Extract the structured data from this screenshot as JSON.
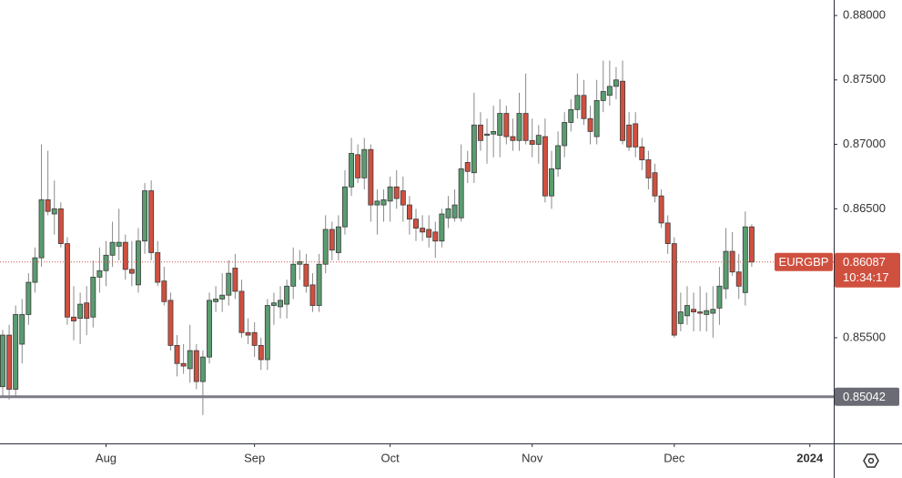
{
  "chart_data": {
    "type": "candlestick",
    "symbol": "EURGBP",
    "last_price": {
      "value": 0.86087,
      "label": "0.86087"
    },
    "countdown": "10:34:17",
    "level": {
      "value": 0.85042,
      "label": "0.85042"
    },
    "up_color": "#5a9c70",
    "down_color": "#d0503f",
    "xlim": [
      -0.42,
      128.7
    ],
    "xticks": [
      {
        "value": 16,
        "label": "Aug"
      },
      {
        "value": 39,
        "label": "Sep"
      },
      {
        "value": 60,
        "label": "Oct"
      },
      {
        "value": 82,
        "label": "Nov"
      },
      {
        "value": 104,
        "label": "Dec"
      },
      {
        "value": 125,
        "label": "2024"
      }
    ],
    "ylim": [
      0.8468,
      0.8812
    ],
    "yticks": [
      {
        "value": 0.855,
        "label": "0.85500"
      },
      {
        "value": 0.86,
        "label": "0.86000"
      },
      {
        "value": 0.865,
        "label": "0.86500"
      },
      {
        "value": 0.87,
        "label": "0.87000"
      },
      {
        "value": 0.875,
        "label": "0.87500"
      },
      {
        "value": 0.88,
        "label": "0.88000"
      }
    ],
    "open": [
      0.8512,
      0.8552,
      0.851,
      0.8545,
      0.8568,
      0.8593,
      0.8612,
      0.8657,
      0.8646,
      0.865,
      0.8623,
      0.8566,
      0.8565,
      0.8577,
      0.8566,
      0.8597,
      0.8602,
      0.8614,
      0.8621,
      0.8624,
      0.8603,
      0.8591,
      0.8625,
      0.8664,
      0.8616,
      0.8594,
      0.8579,
      0.8544,
      0.853,
      0.8526,
      0.854,
      0.8516,
      0.8535,
      0.8578,
      0.858,
      0.8583,
      0.8604,
      0.8586,
      0.8554,
      0.8554,
      0.8544,
      0.8533,
      0.8575,
      0.8574,
      0.8576,
      0.859,
      0.8607,
      0.8607,
      0.8591,
      0.8575,
      0.8607,
      0.8634,
      0.8616,
      0.8636,
      0.8667,
      0.8692,
      0.8674,
      0.8696,
      0.8653,
      0.8653,
      0.8656,
      0.8667,
      0.8664,
      0.8653,
      0.8642,
      0.8635,
      0.8634,
      0.8632,
      0.8625,
      0.8643,
      0.8643,
      0.8643,
      0.8686,
      0.8678,
      0.8715,
      0.8707,
      0.8708,
      0.8707,
      0.8724,
      0.8706,
      0.8703,
      0.8724,
      0.8703,
      0.87,
      0.8706,
      0.866,
      0.8681,
      0.8699,
      0.8717,
      0.8727,
      0.8738,
      0.872,
      0.8706,
      0.8734,
      0.8738,
      0.8745,
      0.8749,
      0.8715,
      0.8716,
      0.8698,
      0.8688,
      0.8678,
      0.866,
      0.8639,
      0.8623,
      0.8561,
      0.8567,
      0.8572,
      0.857,
      0.8568,
      0.8569,
      0.8573,
      0.8588,
      0.8617,
      0.8601,
      0.8585,
      0.8636
    ],
    "high": [
      0.8556,
      0.856,
      0.8575,
      0.858,
      0.86,
      0.862,
      0.87,
      0.8695,
      0.8672,
      0.8655,
      0.8628,
      0.859,
      0.8585,
      0.859,
      0.861,
      0.862,
      0.8625,
      0.864,
      0.865,
      0.863,
      0.8625,
      0.8635,
      0.867,
      0.8672,
      0.8625,
      0.8605,
      0.8585,
      0.8552,
      0.8545,
      0.856,
      0.8545,
      0.854,
      0.8585,
      0.859,
      0.86,
      0.861,
      0.8615,
      0.8595,
      0.8565,
      0.8562,
      0.855,
      0.858,
      0.8585,
      0.859,
      0.8595,
      0.862,
      0.8618,
      0.8615,
      0.86,
      0.8615,
      0.8645,
      0.864,
      0.8645,
      0.868,
      0.8705,
      0.87,
      0.8705,
      0.87,
      0.8665,
      0.8665,
      0.8675,
      0.868,
      0.8675,
      0.866,
      0.865,
      0.8645,
      0.8645,
      0.864,
      0.865,
      0.866,
      0.8665,
      0.87,
      0.8695,
      0.874,
      0.8725,
      0.872,
      0.873,
      0.8735,
      0.873,
      0.872,
      0.874,
      0.8755,
      0.872,
      0.8715,
      0.872,
      0.8695,
      0.871,
      0.8725,
      0.8735,
      0.8755,
      0.875,
      0.873,
      0.875,
      0.8765,
      0.8765,
      0.876,
      0.8765,
      0.8725,
      0.8725,
      0.8705,
      0.8695,
      0.8685,
      0.8665,
      0.8645,
      0.8628,
      0.8585,
      0.859,
      0.8585,
      0.859,
      0.8585,
      0.859,
      0.8605,
      0.8635,
      0.8632,
      0.8615,
      0.8648,
      0.8638
    ],
    "low": [
      0.8505,
      0.8502,
      0.8505,
      0.853,
      0.856,
      0.8585,
      0.8605,
      0.8645,
      0.863,
      0.862,
      0.856,
      0.8548,
      0.8545,
      0.8552,
      0.8558,
      0.8585,
      0.859,
      0.8605,
      0.861,
      0.8595,
      0.859,
      0.8585,
      0.8615,
      0.861,
      0.859,
      0.8575,
      0.854,
      0.852,
      0.8522,
      0.8515,
      0.851,
      0.849,
      0.853,
      0.857,
      0.857,
      0.8575,
      0.858,
      0.855,
      0.8545,
      0.8535,
      0.8525,
      0.8525,
      0.856,
      0.8565,
      0.8565,
      0.858,
      0.8595,
      0.8585,
      0.857,
      0.857,
      0.86,
      0.861,
      0.861,
      0.863,
      0.866,
      0.867,
      0.8665,
      0.864,
      0.863,
      0.864,
      0.864,
      0.865,
      0.864,
      0.863,
      0.8625,
      0.8625,
      0.862,
      0.8612,
      0.862,
      0.8635,
      0.864,
      0.864,
      0.867,
      0.867,
      0.8695,
      0.8685,
      0.869,
      0.869,
      0.87,
      0.8695,
      0.8695,
      0.87,
      0.869,
      0.8685,
      0.8655,
      0.865,
      0.8675,
      0.869,
      0.871,
      0.872,
      0.8715,
      0.87,
      0.87,
      0.8725,
      0.873,
      0.8735,
      0.87,
      0.8695,
      0.869,
      0.868,
      0.8665,
      0.8655,
      0.8635,
      0.8615,
      0.855,
      0.8555,
      0.856,
      0.8555,
      0.8555,
      0.8555,
      0.855,
      0.856,
      0.858,
      0.8598,
      0.858,
      0.8575,
      0.8605
    ],
    "close": [
      0.8552,
      0.851,
      0.8568,
      0.8568,
      0.8593,
      0.8612,
      0.8657,
      0.8648,
      0.865,
      0.8623,
      0.8566,
      0.8563,
      0.8576,
      0.8565,
      0.8597,
      0.8602,
      0.8614,
      0.8624,
      0.8624,
      0.8603,
      0.86,
      0.8625,
      0.8664,
      0.8616,
      0.8593,
      0.8578,
      0.8544,
      0.853,
      0.8528,
      0.854,
      0.8516,
      0.8535,
      0.8579,
      0.858,
      0.8583,
      0.86,
      0.8586,
      0.8554,
      0.8552,
      0.8544,
      0.8533,
      0.8575,
      0.8577,
      0.8579,
      0.859,
      0.8607,
      0.8609,
      0.859,
      0.8575,
      0.8607,
      0.8634,
      0.8618,
      0.8636,
      0.8667,
      0.8693,
      0.8674,
      0.8696,
      0.8653,
      0.8656,
      0.8657,
      0.8667,
      0.8658,
      0.8653,
      0.8642,
      0.8635,
      0.8632,
      0.8628,
      0.8625,
      0.8646,
      0.865,
      0.8653,
      0.8681,
      0.8679,
      0.8715,
      0.8703,
      0.8708,
      0.871,
      0.8724,
      0.8706,
      0.8703,
      0.8724,
      0.8703,
      0.87,
      0.8707,
      0.866,
      0.8681,
      0.8699,
      0.8717,
      0.8727,
      0.8738,
      0.872,
      0.871,
      0.8734,
      0.8741,
      0.8745,
      0.875,
      0.8703,
      0.8698,
      0.8698,
      0.8688,
      0.8674,
      0.866,
      0.8639,
      0.8623,
      0.8552,
      0.857,
      0.8575,
      0.857,
      0.8569,
      0.8571,
      0.8572,
      0.859,
      0.8617,
      0.8601,
      0.859,
      0.8636,
      0.86087
    ]
  }
}
